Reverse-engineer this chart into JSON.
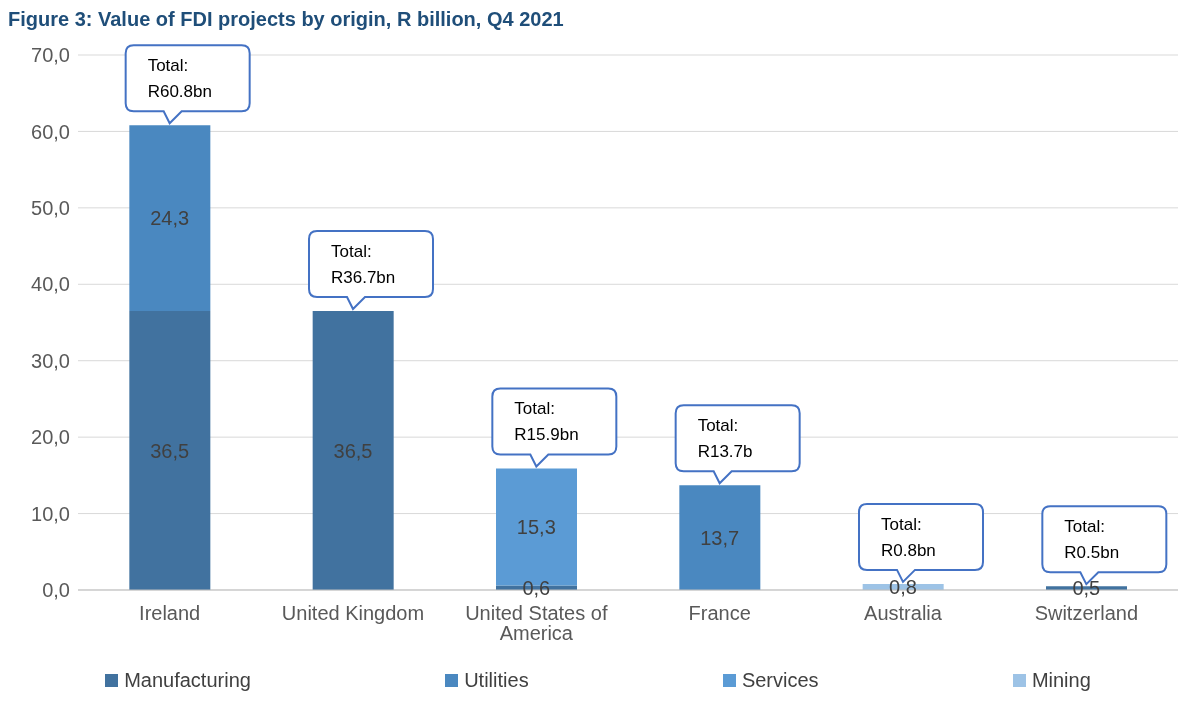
{
  "chart_data": {
    "type": "bar",
    "title": "Figure 3: Value of FDI projects by origin, R billion, Q4 2021",
    "categories": [
      "Ireland",
      "United Kingdom",
      "United States of America",
      "France",
      "Australia",
      "Switzerland"
    ],
    "stacked": true,
    "series": [
      {
        "name": "Manufacturing",
        "color": "#41729f",
        "values": [
          36.5,
          36.5,
          0.6,
          null,
          null,
          0.5
        ],
        "value_labels": [
          "36,5",
          "36,5",
          "0,6",
          null,
          null,
          "0,5"
        ]
      },
      {
        "name": "Utilities",
        "color": "#4a88c0",
        "values": [
          24.3,
          null,
          null,
          13.7,
          null,
          null
        ],
        "value_labels": [
          "24,3",
          null,
          null,
          "13,7",
          null,
          null
        ]
      },
      {
        "name": "Services",
        "color": "#5b9bd5",
        "values": [
          null,
          null,
          15.3,
          null,
          null,
          null
        ],
        "value_labels": [
          null,
          null,
          "15,3",
          null,
          null,
          null
        ]
      },
      {
        "name": "Mining",
        "color": "#9dc3e6",
        "values": [
          null,
          null,
          null,
          null,
          0.8,
          null
        ],
        "value_labels": [
          null,
          null,
          null,
          null,
          "0,8",
          null
        ]
      }
    ],
    "totals": [
      "Total:\nR60.8bn",
      "Total:\nR36.7bn",
      "Total:\nR15.9bn",
      "Total:\nR13.7b",
      "Total:\nR0.8bn",
      "Total:\nR0.5bn"
    ],
    "ylim": [
      0,
      70
    ],
    "yticks": [
      {
        "value": 0,
        "label": "0,0"
      },
      {
        "value": 10,
        "label": "10,0"
      },
      {
        "value": 20,
        "label": "20,0"
      },
      {
        "value": 30,
        "label": "30,0"
      },
      {
        "value": 40,
        "label": "40,0"
      },
      {
        "value": 50,
        "label": "50,0"
      },
      {
        "value": 60,
        "label": "60,0"
      },
      {
        "value": 70,
        "label": "70,0"
      }
    ],
    "grid": "y",
    "legend": "bottom"
  }
}
